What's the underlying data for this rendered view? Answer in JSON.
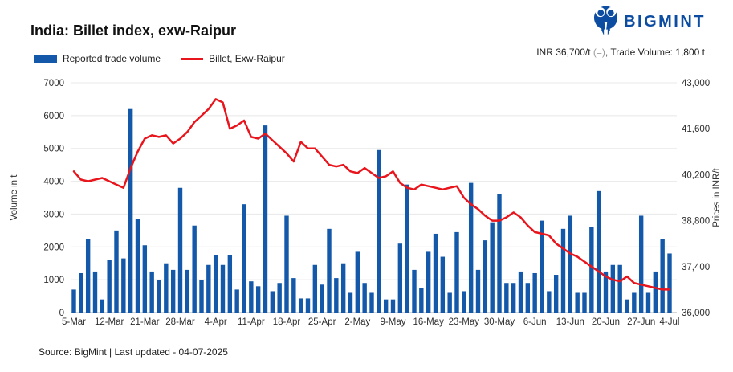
{
  "header": {
    "title": "India: Billet index, exw-Raipur",
    "logo_text": "BIGMINT",
    "logo_color": "#0c4da2",
    "info_price": "INR 36,700/t ",
    "info_change": "(=)",
    "info_tail": ", Trade Volume: 1,800 t",
    "info_change_color": "#9b9b9b"
  },
  "footer": {
    "source": "Source: BigMint | Last updated - 04-07-2025"
  },
  "chart_data": {
    "type": "combo",
    "title": "India: Billet index, exw-Raipur",
    "grid": true,
    "x_labels": [
      "5-Mar",
      "12-Mar",
      "21-Mar",
      "28-Mar",
      "4-Apr",
      "11-Apr",
      "18-Apr",
      "25-Apr",
      "2-May",
      "9-May",
      "16-May",
      "23-May",
      "30-May",
      "6-Jun",
      "13-Jun",
      "20-Jun",
      "27-Jun",
      "4-Jul"
    ],
    "x_label_indices": [
      0,
      5,
      10,
      15,
      20,
      25,
      30,
      35,
      40,
      45,
      50,
      55,
      60,
      65,
      70,
      75,
      80,
      84
    ],
    "left_axis": {
      "title": "Volume in t",
      "min": 0,
      "max": 7000,
      "step": 1000
    },
    "right_axis": {
      "title": "Prices in INR/t",
      "min": 36000,
      "max": 43000,
      "step": 1400
    },
    "series": [
      {
        "name": "Reported trade volume",
        "type": "bar",
        "axis": "left",
        "color": "#1459a9",
        "values": [
          700,
          1200,
          2250,
          1250,
          400,
          1600,
          2500,
          1650,
          6200,
          2850,
          2050,
          1250,
          1000,
          1500,
          1300,
          3800,
          1300,
          2650,
          1000,
          1450,
          1750,
          1450,
          1750,
          700,
          3300,
          950,
          800,
          5700,
          650,
          900,
          2950,
          1050,
          430,
          430,
          1450,
          850,
          2550,
          1050,
          1500,
          600,
          1850,
          900,
          600,
          4950,
          400,
          400,
          2100,
          3900,
          1300,
          750,
          1850,
          2400,
          1700,
          600,
          2450,
          650,
          3950,
          1300,
          2200,
          2750,
          3600,
          900,
          900,
          1250,
          900,
          1200,
          2800,
          650,
          1150,
          2550,
          2950,
          600,
          600,
          2600,
          3700,
          1250,
          1450,
          1450,
          400,
          600,
          2950,
          600,
          1250,
          2250,
          1800
        ]
      },
      {
        "name": "Billet, Exw-Raipur",
        "type": "line",
        "axis": "right",
        "color": "#e9151d",
        "values": [
          40300,
          40050,
          40000,
          40050,
          40100,
          40000,
          39900,
          39800,
          40400,
          40900,
          41300,
          41400,
          41350,
          41400,
          41150,
          41300,
          41500,
          41800,
          42000,
          42200,
          42500,
          42400,
          41600,
          41700,
          41850,
          41350,
          41300,
          41450,
          41250,
          41050,
          40850,
          40600,
          41200,
          41000,
          41000,
          40750,
          40500,
          40450,
          40500,
          40300,
          40250,
          40400,
          40250,
          40100,
          40150,
          40300,
          39950,
          39800,
          39750,
          39900,
          39850,
          39800,
          39750,
          39800,
          39850,
          39500,
          39300,
          39150,
          38950,
          38800,
          38800,
          38900,
          39050,
          38900,
          38650,
          38450,
          38400,
          38350,
          38100,
          37950,
          37800,
          37700,
          37550,
          37400,
          37250,
          37100,
          37000,
          36950,
          37100,
          36900,
          36850,
          36800,
          36750,
          36700,
          36700
        ]
      }
    ]
  }
}
